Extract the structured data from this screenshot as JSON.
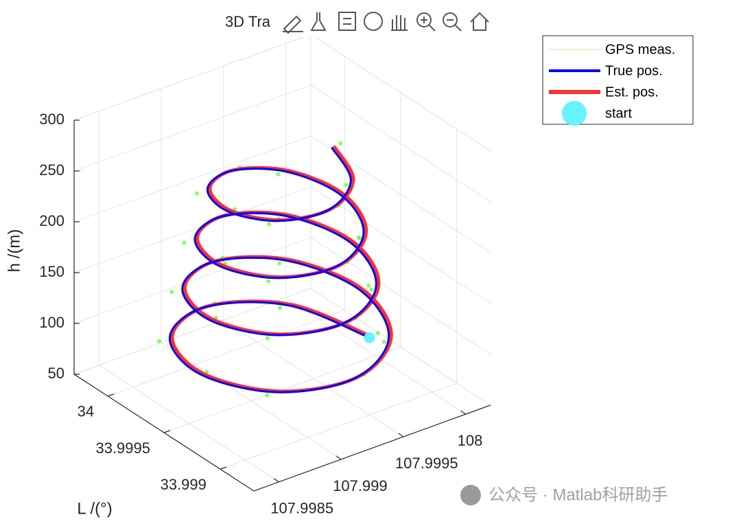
{
  "chart_data": {
    "type": "line3d",
    "title": "3D Tra",
    "xlim": [
      107.9983,
      108.0002
    ],
    "xticks": [
      107.9985,
      107.999,
      107.9995,
      108
    ],
    "ylim": [
      33.9987,
      34.0003
    ],
    "yticks": [
      33.999,
      33.9995,
      34
    ],
    "zlim": [
      50,
      300
    ],
    "zticks": [
      50,
      100,
      150,
      200,
      250,
      300
    ],
    "ylabel": "L /(°)",
    "zlabel": "h /(m)",
    "grid": true,
    "legend": "northeast",
    "series": [
      {
        "name": "GPS meas.",
        "color": "#66ff33",
        "style": "dots",
        "x": [
          107.99999,
          107.999708,
          107.9993,
          107.998735,
          107.998607,
          107.998738,
          107.99928,
          107.999679,
          107.999915,
          107.999655,
          107.9993,
          107.998788,
          107.998682,
          107.998791,
          107.99928,
          107.999626,
          107.99984,
          107.999602,
          107.9993,
          107.998841,
          107.998757,
          107.998844,
          107.99928,
          107.999573,
          107.999765,
          107.999549,
          107.9993,
          107.998894,
          107.998832,
          107.998897,
          107.99928,
          107.999519,
          107.99969
        ],
        "y": [
          33.99947,
          34.000028,
          34.000161,
          34.000025,
          33.99946,
          33.999068,
          33.998806,
          33.999071,
          33.99947,
          33.999975,
          34.000086,
          33.999972,
          33.99946,
          33.999121,
          33.998881,
          33.999124,
          33.99947,
          33.999922,
          34.000011,
          33.999919,
          33.99946,
          33.999174,
          33.998956,
          33.999177,
          33.99947,
          33.999869,
          33.999936,
          33.999866,
          33.99946,
          33.999227,
          33.999031,
          33.999231,
          33.99947
        ],
        "z": [
          75,
          72.25,
          85.5,
          82.75,
          99,
          98.25,
          113.5,
          108.75,
          125,
          122.25,
          135.5,
          132.75,
          149,
          148.25,
          163.5,
          158.75,
          175,
          172.25,
          185.5,
          182.75,
          199,
          198.25,
          213.5,
          208.75,
          225,
          222.25,
          235.5,
          232.75,
          249,
          248.25,
          263.5,
          258.75,
          275
        ]
      },
      {
        "name": "True pos.",
        "color": "#0000ff",
        "style": "line",
        "x": [
          107.99995,
          107.999738,
          107.99925,
          107.998775,
          107.998587,
          107.998788,
          107.99925,
          107.999699,
          107.999875,
          107.999685,
          107.99925,
          107.998828,
          107.998662,
          107.998841,
          107.99925,
          107.999646,
          107.9998,
          107.999632,
          107.99925,
          107.998881,
          107.998737,
          107.998894,
          107.99925,
          107.999593,
          107.999725,
          107.999579,
          107.99925,
          107.998934,
          107.998812,
          107.998947,
          107.99925,
          107.999539,
          107.99965
        ],
        "y": [
          33.9995,
          33.999988,
          34.000181,
          33.999975,
          33.9995,
          33.999038,
          33.998856,
          33.999051,
          33.9995,
          33.999935,
          34.000106,
          33.999922,
          33.9995,
          33.999091,
          33.998931,
          33.999104,
          33.9995,
          33.999882,
          34.000031,
          33.999869,
          33.9995,
          33.999144,
          33.999006,
          33.999157,
          33.9995,
          33.999829,
          33.999956,
          33.999816,
          33.9995,
          33.999197,
          33.999081,
          33.999211,
          33.9995
        ],
        "z": [
          70,
          76.25,
          82.5,
          88.75,
          95,
          101.25,
          107.5,
          113.75,
          120,
          126.25,
          132.5,
          138.75,
          145,
          151.25,
          157.5,
          163.75,
          170,
          176.25,
          182.5,
          188.75,
          195,
          201.25,
          207.5,
          213.75,
          220,
          226.25,
          232.5,
          238.75,
          245,
          251.25,
          257.5,
          263.75,
          270
        ]
      },
      {
        "name": "Est. pos.",
        "color": "#ff3030",
        "style": "line",
        "x": [
          107.99997,
          107.999758,
          107.99927,
          107.998795,
          107.998607,
          107.998808,
          107.99927,
          107.999719,
          107.999895,
          107.999705,
          107.99927,
          107.998848,
          107.998682,
          107.998861,
          107.99927,
          107.999666,
          107.99982,
          107.999652,
          107.99927,
          107.998901,
          107.998757,
          107.998914,
          107.99927,
          107.999613,
          107.999745,
          107.999599,
          107.99927,
          107.998954,
          107.998832,
          107.998967,
          107.99927,
          107.999559,
          107.99967
        ],
        "y": [
          33.9995,
          33.999988,
          34.000181,
          33.999975,
          33.9995,
          33.999038,
          33.998856,
          33.999051,
          33.9995,
          33.999935,
          34.000106,
          33.999922,
          33.9995,
          33.999091,
          33.998931,
          33.999104,
          33.9995,
          33.999882,
          34.000031,
          33.999869,
          33.9995,
          33.999144,
          33.999006,
          33.999157,
          33.9995,
          33.999829,
          33.999956,
          33.999816,
          33.9995,
          33.999197,
          33.999081,
          33.999211,
          33.9995
        ],
        "z": [
          70,
          76.25,
          82.5,
          88.75,
          95,
          101.25,
          107.5,
          113.75,
          120,
          126.25,
          132.5,
          138.75,
          145,
          151.25,
          157.5,
          163.75,
          170,
          176.25,
          182.5,
          188.75,
          195,
          201.25,
          207.5,
          213.75,
          220,
          226.25,
          232.5,
          238.75,
          245,
          251.25,
          257.5,
          263.75,
          270
        ]
      },
      {
        "name": "start",
        "color": "#66f2ff",
        "style": "marker",
        "x": [
          107.99995
        ],
        "y": [
          33.9995
        ],
        "z": [
          70
        ]
      }
    ],
    "watermark": "公众号 · Matlab科研助手"
  }
}
